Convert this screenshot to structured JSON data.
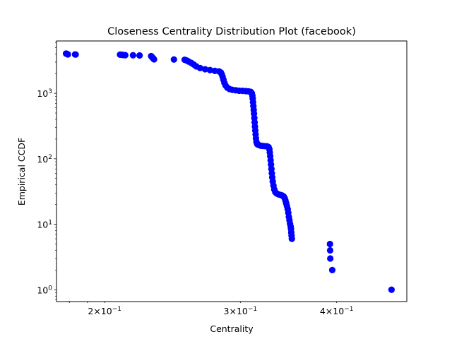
{
  "chart_data": {
    "type": "scatter",
    "title": "Closeness Centrality Distribution Plot (facebook)",
    "xlabel": "Centrality",
    "ylabel": "Empirical CCDF",
    "xscale": "log",
    "yscale": "log",
    "xlim": [
      0.1732,
      0.4933
    ],
    "ylim": [
      0.66,
      6300
    ],
    "x_ticks": [
      {
        "value": 0.2,
        "base": "2",
        "sep": "×",
        "pow": "10",
        "exp": "−1"
      },
      {
        "value": 0.3,
        "base": "3",
        "sep": "×",
        "pow": "10",
        "exp": "−1"
      },
      {
        "value": 0.4,
        "base": "4",
        "sep": "×",
        "pow": "10",
        "exp": "−1"
      }
    ],
    "y_ticks": [
      {
        "value": 1,
        "base": "10",
        "exp": "0"
      },
      {
        "value": 10,
        "base": "10",
        "exp": "1"
      },
      {
        "value": 100,
        "base": "10",
        "exp": "2"
      },
      {
        "value": 1000,
        "base": "10",
        "exp": "3"
      }
    ],
    "grid": false,
    "marker_color": "#0000ff",
    "series": [
      {
        "points": [
          [
            0.1782,
            4039
          ],
          [
            0.1785,
            4020
          ],
          [
            0.1787,
            3995
          ],
          [
            0.179,
            3960
          ],
          [
            0.1792,
            3930
          ],
          [
            0.1831,
            3925
          ],
          [
            0.1834,
            3910
          ],
          [
            0.2094,
            3895
          ],
          [
            0.2102,
            3880
          ],
          [
            0.211,
            3860
          ],
          [
            0.212,
            3840
          ],
          [
            0.2127,
            3820
          ],
          [
            0.2177,
            3810
          ],
          [
            0.222,
            3785
          ],
          [
            0.2298,
            3700
          ],
          [
            0.2302,
            3620
          ],
          [
            0.2306,
            3540
          ],
          [
            0.231,
            3460
          ],
          [
            0.2314,
            3380
          ],
          [
            0.2318,
            3300
          ],
          [
            0.246,
            3280
          ],
          [
            0.254,
            3250
          ],
          [
            0.2555,
            3170
          ],
          [
            0.257,
            3060
          ],
          [
            0.259,
            2920
          ],
          [
            0.261,
            2750
          ],
          [
            0.263,
            2580
          ],
          [
            0.266,
            2430
          ],
          [
            0.27,
            2330
          ],
          [
            0.274,
            2260
          ],
          [
            0.278,
            2200
          ],
          [
            0.2815,
            2160
          ],
          [
            0.283,
            2080
          ],
          [
            0.2838,
            1950
          ],
          [
            0.2845,
            1800
          ],
          [
            0.2852,
            1620
          ],
          [
            0.286,
            1450
          ],
          [
            0.287,
            1320
          ],
          [
            0.2885,
            1220
          ],
          [
            0.2905,
            1160
          ],
          [
            0.293,
            1130
          ],
          [
            0.296,
            1110
          ],
          [
            0.299,
            1095
          ],
          [
            0.302,
            1090
          ],
          [
            0.305,
            1080
          ],
          [
            0.3075,
            1070
          ],
          [
            0.3095,
            1050
          ],
          [
            0.3105,
            1000
          ],
          [
            0.311,
            920
          ],
          [
            0.3113,
            830
          ],
          [
            0.3116,
            730
          ],
          [
            0.3119,
            640
          ],
          [
            0.3122,
            560
          ],
          [
            0.3125,
            490
          ],
          [
            0.3128,
            420
          ],
          [
            0.3131,
            360
          ],
          [
            0.3134,
            310
          ],
          [
            0.3137,
            270
          ],
          [
            0.314,
            235
          ],
          [
            0.3143,
            205
          ],
          [
            0.3148,
            180
          ],
          [
            0.3155,
            168
          ],
          [
            0.317,
            162
          ],
          [
            0.319,
            158
          ],
          [
            0.321,
            157
          ],
          [
            0.323,
            156
          ],
          [
            0.325,
            155
          ],
          [
            0.3265,
            150
          ],
          [
            0.3272,
            140
          ],
          [
            0.3276,
            125
          ],
          [
            0.328,
            110
          ],
          [
            0.3284,
            95
          ],
          [
            0.3288,
            82
          ],
          [
            0.3292,
            70
          ],
          [
            0.3296,
            60
          ],
          [
            0.33,
            52
          ],
          [
            0.3305,
            45
          ],
          [
            0.3312,
            39
          ],
          [
            0.332,
            34
          ],
          [
            0.333,
            31
          ],
          [
            0.3345,
            29.5
          ],
          [
            0.3365,
            28.5
          ],
          [
            0.3385,
            28
          ],
          [
            0.34,
            27.5
          ],
          [
            0.3415,
            26.5
          ],
          [
            0.3425,
            25
          ],
          [
            0.3433,
            23
          ],
          [
            0.344,
            21
          ],
          [
            0.3448,
            19
          ],
          [
            0.3456,
            17
          ],
          [
            0.3462,
            15
          ],
          [
            0.3468,
            13
          ],
          [
            0.3474,
            11.5
          ],
          [
            0.348,
            10.2
          ],
          [
            0.3487,
            9.2
          ],
          [
            0.349,
            8.5
          ],
          [
            0.3493,
            7.5
          ],
          [
            0.3496,
            6.7
          ],
          [
            0.3499,
            6
          ],
          [
            0.3921,
            5
          ],
          [
            0.3923,
            4
          ],
          [
            0.3925,
            3
          ],
          [
            0.3948,
            2
          ],
          [
            0.4713,
            1
          ]
        ]
      }
    ]
  }
}
